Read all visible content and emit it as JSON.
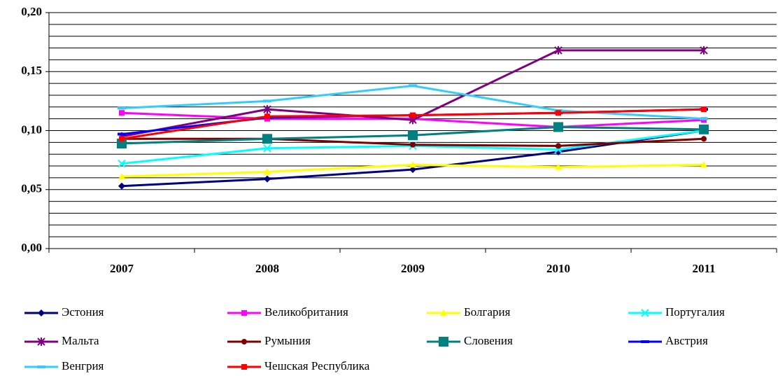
{
  "chart_data": {
    "type": "line",
    "categories": [
      "2007",
      "2008",
      "2009",
      "2010",
      "2011"
    ],
    "ylim": [
      0,
      0.2
    ],
    "yticks": [
      {
        "value": 0,
        "label": "0,00"
      },
      {
        "value": 0.05,
        "label": "0,05"
      },
      {
        "value": 0.1,
        "label": "0,10"
      },
      {
        "value": 0.15,
        "label": "0,15"
      },
      {
        "value": 0.2,
        "label": "0,20"
      }
    ],
    "minor_yticks": [
      0.01,
      0.02,
      0.03,
      0.04,
      0.06,
      0.07,
      0.08,
      0.09,
      0.11,
      0.12,
      0.13,
      0.14,
      0.16,
      0.17,
      0.18,
      0.19
    ],
    "grid": true,
    "legend": "bottom",
    "series": [
      {
        "name": "Эстония",
        "color": "#000080",
        "marker": "diamond",
        "values": [
          0.053,
          0.059,
          0.067,
          0.082,
          0.1
        ]
      },
      {
        "name": "Великобритания",
        "color": "#ff00ff",
        "marker": "square",
        "values": [
          0.115,
          0.11,
          0.11,
          0.103,
          0.109
        ]
      },
      {
        "name": "Болгария",
        "color": "#ffff00",
        "marker": "triangle",
        "values": [
          0.061,
          0.065,
          0.071,
          0.069,
          0.071
        ]
      },
      {
        "name": "Португалия",
        "color": "#00ffff",
        "marker": "x",
        "values": [
          0.072,
          0.085,
          0.087,
          0.084,
          0.1
        ]
      },
      {
        "name": "Мальта",
        "color": "#800080",
        "marker": "star",
        "values": [
          0.095,
          0.118,
          0.109,
          0.168,
          0.168
        ]
      },
      {
        "name": "Румыния",
        "color": "#800000",
        "marker": "circle",
        "values": [
          0.093,
          0.093,
          0.088,
          0.087,
          0.093
        ]
      },
      {
        "name": "Словения",
        "color": "#008080",
        "marker": "bigsquare",
        "values": [
          0.089,
          0.093,
          0.096,
          0.103,
          0.101
        ]
      },
      {
        "name": "Австрия",
        "color": "#0000ff",
        "marker": "dash",
        "values": [
          0.097,
          0.111,
          0.113,
          0.115,
          0.118
        ]
      },
      {
        "name": "Венгрия",
        "color": "#33ccff",
        "marker": "dash",
        "values": [
          0.119,
          0.125,
          0.138,
          0.117,
          0.11
        ]
      },
      {
        "name": "Чешская Республика",
        "color": "#ff0000",
        "marker": "square",
        "values": [
          0.093,
          0.112,
          0.113,
          0.115,
          0.118
        ]
      }
    ]
  }
}
